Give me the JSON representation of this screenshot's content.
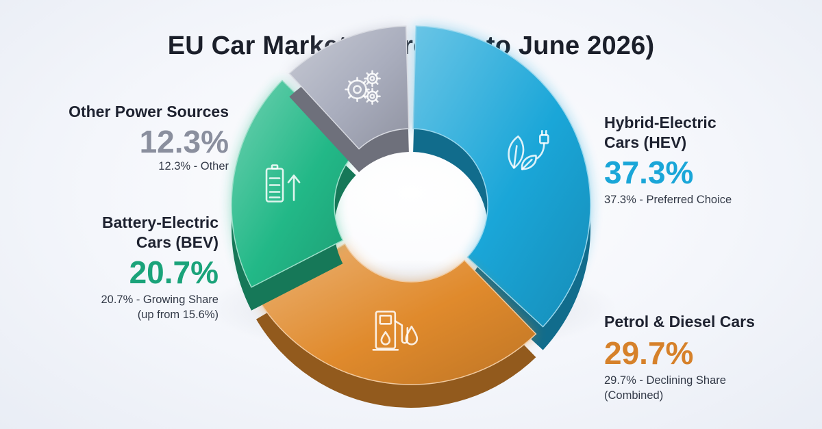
{
  "chart_data": {
    "type": "pie",
    "title": "EU Car Market Share (Up to June 2026)",
    "unit": "%",
    "series": [
      {
        "name": "Hybrid-Electric Cars (HEV)",
        "name_lines": [
          "Hybrid-Electric",
          "Cars (HEV)"
        ],
        "value": 37.3,
        "value_label": "37.3%",
        "note_lines": [
          "37.3% - Preferred Choice"
        ],
        "color": "#1aa6d8",
        "icon": "leaf-plug-icon"
      },
      {
        "name": "Petrol & Diesel Cars",
        "name_lines": [
          "Petrol & Diesel Cars"
        ],
        "value": 29.7,
        "value_label": "29.7%",
        "note_lines": [
          "29.7% - Declining Share",
          "(Combined)"
        ],
        "color": "#e08a2c",
        "icon": "fuel-pump-icon"
      },
      {
        "name": "Battery-Electric Cars (BEV)",
        "name_lines": [
          "Battery-Electric",
          "Cars (BEV)"
        ],
        "value": 20.7,
        "value_label": "20.7%",
        "note_lines": [
          "20.7% - Growing Share",
          "(up from 15.6%)"
        ],
        "color": "#22b887",
        "icon": "battery-charging-icon"
      },
      {
        "name": "Other Power Sources",
        "name_lines": [
          "Other Power Sources"
        ],
        "value": 12.3,
        "value_label": "12.3%",
        "note_lines": [
          "12.3% - Other"
        ],
        "color": "#a9adbd",
        "icon": "gears-icon"
      }
    ],
    "legend": "none"
  }
}
